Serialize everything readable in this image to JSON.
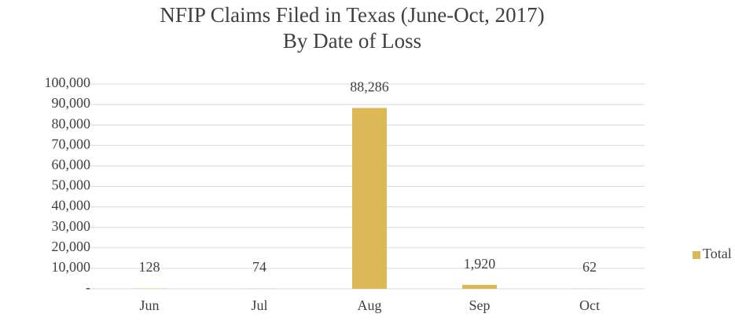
{
  "chart_data": {
    "type": "bar",
    "title": "NFIP Claims Filed in Texas (June-Oct, 2017)",
    "subtitle": "By Date of Loss",
    "categories": [
      "Jun",
      "Jul",
      "Aug",
      "Sep",
      "Oct"
    ],
    "series": [
      {
        "name": "Total",
        "color": "#dcb956",
        "values": [
          128,
          74,
          88286,
          1920,
          62
        ],
        "value_labels": [
          "128",
          "74",
          "88,286",
          "1,920",
          "62"
        ]
      }
    ],
    "ylim": [
      0,
      100000
    ],
    "yticks": [
      {
        "value": 0,
        "label": "-"
      },
      {
        "value": 10000,
        "label": "10,000"
      },
      {
        "value": 20000,
        "label": "20,000"
      },
      {
        "value": 30000,
        "label": "30,000"
      },
      {
        "value": 40000,
        "label": "40,000"
      },
      {
        "value": 50000,
        "label": "50,000"
      },
      {
        "value": 60000,
        "label": "60,000"
      },
      {
        "value": 70000,
        "label": "70,000"
      },
      {
        "value": 80000,
        "label": "80,000"
      },
      {
        "value": 90000,
        "label": "90,000"
      },
      {
        "value": 100000,
        "label": "100,000"
      }
    ],
    "grid": true,
    "legend": "right"
  }
}
